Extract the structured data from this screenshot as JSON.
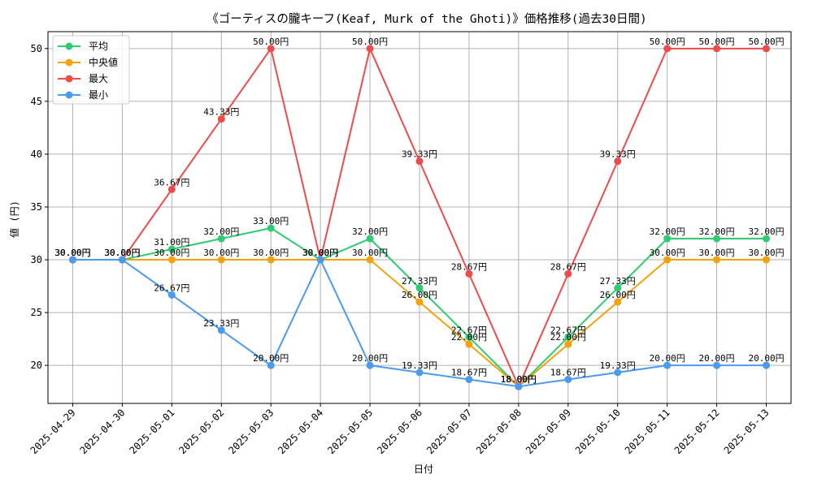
{
  "chart_data": {
    "type": "line",
    "title": "《ゴーティスの朧キーフ(Keaf, Murk of the Ghoti)》価格推移(過去30日間)",
    "xlabel": "日付",
    "ylabel": "値 (円)",
    "categories": [
      "2025-04-29",
      "2025-04-30",
      "2025-05-01",
      "2025-05-02",
      "2025-05-03",
      "2025-05-04",
      "2025-05-05",
      "2025-05-06",
      "2025-05-07",
      "2025-05-08",
      "2025-05-09",
      "2025-05-10",
      "2025-05-11",
      "2025-05-12",
      "2025-05-13"
    ],
    "ylim": [
      16.4,
      51.6
    ],
    "yticks": [
      20,
      25,
      30,
      35,
      40,
      45,
      50
    ],
    "grid": true,
    "legend_position": "top-left",
    "value_suffix": "円",
    "series": [
      {
        "name": "平均",
        "color": "#2ecc71",
        "values": [
          30.0,
          30.0,
          31.0,
          32.0,
          33.0,
          30.0,
          32.0,
          27.33,
          22.67,
          18.0,
          22.67,
          27.33,
          32.0,
          32.0,
          32.0
        ]
      },
      {
        "name": "中央値",
        "color": "#f5a20a",
        "values": [
          30.0,
          30.0,
          30.0,
          30.0,
          30.0,
          30.0,
          30.0,
          26.0,
          22.0,
          18.0,
          22.0,
          26.0,
          30.0,
          30.0,
          30.0
        ]
      },
      {
        "name": "最大",
        "color": "#f04a4a",
        "values": [
          30.0,
          30.0,
          36.67,
          43.33,
          50.0,
          30.0,
          50.0,
          39.33,
          28.67,
          18.0,
          28.67,
          39.33,
          50.0,
          50.0,
          50.0
        ]
      },
      {
        "name": "最小",
        "color": "#4a9af0",
        "values": [
          30.0,
          30.0,
          26.67,
          23.33,
          20.0,
          30.0,
          20.0,
          19.33,
          18.67,
          18.0,
          18.67,
          19.33,
          20.0,
          20.0,
          20.0
        ]
      }
    ]
  }
}
